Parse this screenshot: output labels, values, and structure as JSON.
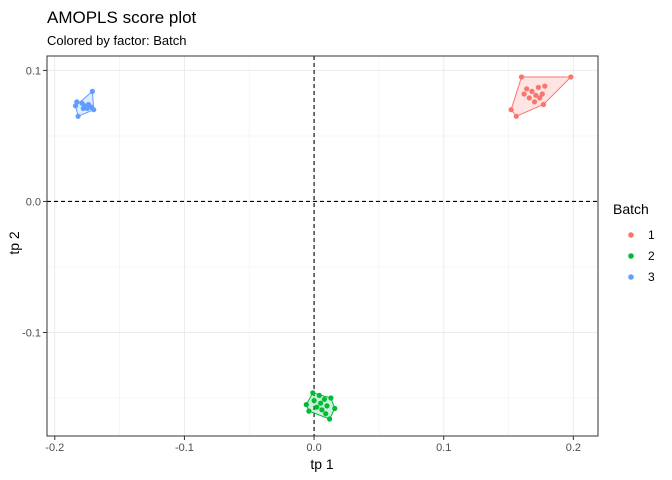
{
  "chart_data": {
    "type": "scatter",
    "title": "AMOPLS score plot",
    "subtitle": "Colored by factor: Batch",
    "xlabel": "tp 1",
    "ylabel": "tp 2",
    "xlim": [
      -0.206,
      0.219
    ],
    "ylim": [
      -0.179,
      0.111
    ],
    "x_ticks": [
      -0.2,
      -0.1,
      0.0,
      0.1,
      0.2
    ],
    "x_tick_labels": [
      "-0.2",
      "-0.1",
      "0.0",
      "0.1",
      "0.2"
    ],
    "y_ticks": [
      -0.1,
      0.0,
      0.1
    ],
    "y_tick_labels": [
      "-0.1",
      "0.0",
      "0.1"
    ],
    "grid": true,
    "reference_lines": {
      "x": 0,
      "y": 0,
      "style": "dashed"
    },
    "legend": {
      "title": "Batch",
      "placement": "right"
    },
    "series": [
      {
        "name": "1",
        "color": "#F8766D",
        "points": [
          [
            0.152,
            0.07
          ],
          [
            0.156,
            0.065
          ],
          [
            0.16,
            0.095
          ],
          [
            0.162,
            0.082
          ],
          [
            0.164,
            0.086
          ],
          [
            0.166,
            0.079
          ],
          [
            0.168,
            0.084
          ],
          [
            0.17,
            0.076
          ],
          [
            0.171,
            0.081
          ],
          [
            0.173,
            0.087
          ],
          [
            0.174,
            0.079
          ],
          [
            0.176,
            0.082
          ],
          [
            0.177,
            0.074
          ],
          [
            0.178,
            0.088
          ],
          [
            0.198,
            0.095
          ]
        ],
        "hull": [
          [
            0.152,
            0.07
          ],
          [
            0.156,
            0.065
          ],
          [
            0.177,
            0.074
          ],
          [
            0.198,
            0.095
          ],
          [
            0.16,
            0.095
          ]
        ]
      },
      {
        "name": "2",
        "color": "#00BA38",
        "points": [
          [
            -0.006,
            -0.155
          ],
          [
            -0.004,
            -0.16
          ],
          [
            -0.001,
            -0.146
          ],
          [
            0.0,
            -0.152
          ],
          [
            0.002,
            -0.157
          ],
          [
            0.004,
            -0.148
          ],
          [
            0.005,
            -0.154
          ],
          [
            0.006,
            -0.159
          ],
          [
            0.008,
            -0.151
          ],
          [
            0.009,
            -0.162
          ],
          [
            0.01,
            -0.156
          ],
          [
            0.012,
            -0.166
          ],
          [
            0.013,
            -0.15
          ],
          [
            0.016,
            -0.158
          ]
        ],
        "hull": [
          [
            -0.006,
            -0.155
          ],
          [
            -0.001,
            -0.146
          ],
          [
            0.013,
            -0.15
          ],
          [
            0.016,
            -0.158
          ],
          [
            0.012,
            -0.166
          ],
          [
            -0.004,
            -0.16
          ]
        ]
      },
      {
        "name": "3",
        "color": "#619CFF",
        "points": [
          [
            -0.184,
            0.073
          ],
          [
            -0.183,
            0.076
          ],
          [
            -0.182,
            0.065
          ],
          [
            -0.179,
            0.075
          ],
          [
            -0.178,
            0.071
          ],
          [
            -0.177,
            0.073
          ],
          [
            -0.175,
            0.071
          ],
          [
            -0.174,
            0.074
          ],
          [
            -0.172,
            0.072
          ],
          [
            -0.171,
            0.084
          ],
          [
            -0.17,
            0.07
          ]
        ],
        "hull": [
          [
            -0.184,
            0.073
          ],
          [
            -0.171,
            0.084
          ],
          [
            -0.17,
            0.07
          ],
          [
            -0.182,
            0.065
          ]
        ]
      }
    ]
  }
}
